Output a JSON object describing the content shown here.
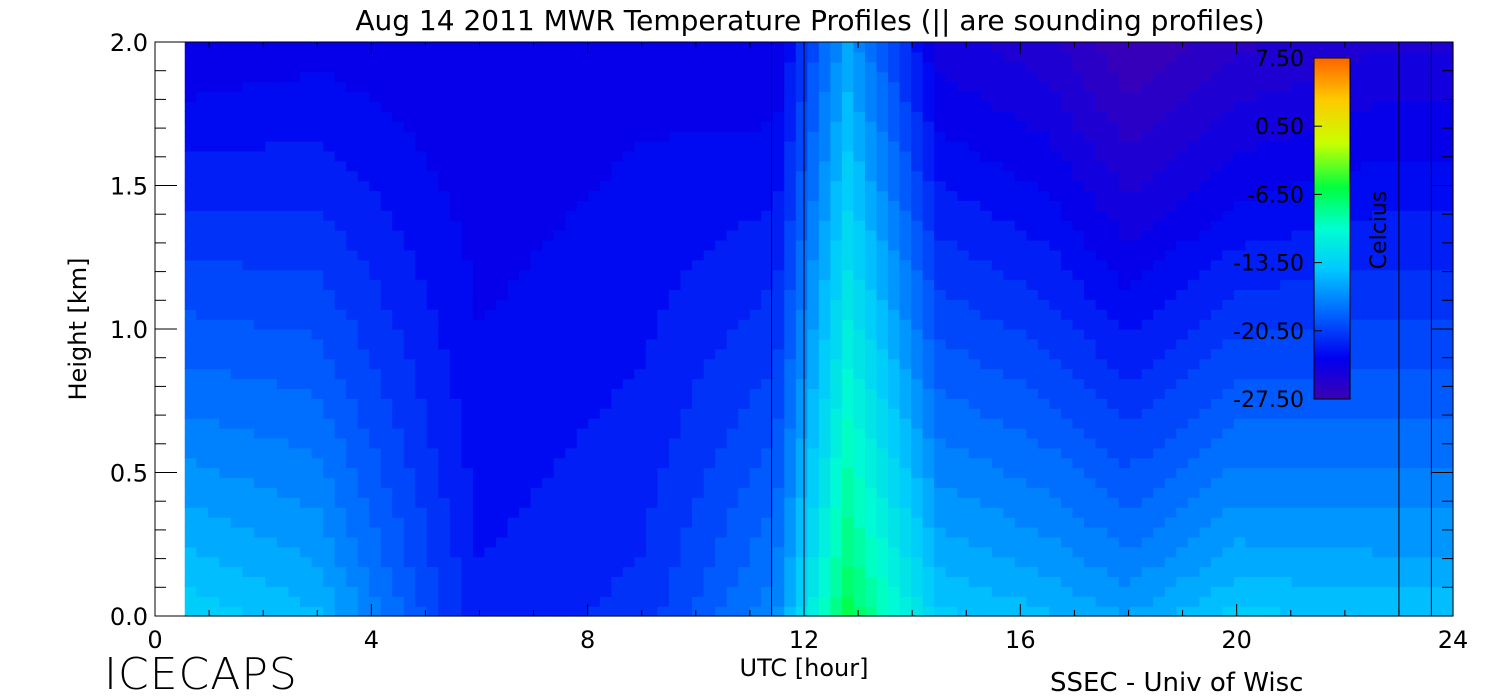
{
  "chart_data": {
    "type": "heatmap",
    "title": "Aug 14 2011 MWR Temperature Profiles (|| are sounding profiles)",
    "xlabel": "UTC [hour]",
    "ylabel": "Height [km]",
    "xlim": [
      0,
      24
    ],
    "ylim": [
      0,
      2
    ],
    "x_ticks": [
      0,
      4,
      8,
      12,
      16,
      20,
      24
    ],
    "y_ticks": [
      "0.0",
      "0.5",
      "1.0",
      "1.5",
      "2.0"
    ],
    "colorbar": {
      "label": "Celcius",
      "range": [
        -27.5,
        7.5
      ],
      "ticks": [
        "7.50",
        "0.50",
        "-6.50",
        "-13.50",
        "-20.50",
        "-27.50"
      ]
    },
    "sounding_times_utc": [
      11.4,
      12.0,
      23.0,
      23.6
    ],
    "data_start_utc": 0.55,
    "profile_samples": {
      "utc_hours": [
        0.5,
        3.0,
        6.0,
        9.0,
        11.5,
        12.8,
        14.5,
        16.5,
        18.0,
        20.0,
        22.5
      ],
      "surface_temp_c": [
        -13.5,
        -15.0,
        -22.0,
        -21.0,
        -17.0,
        -6.0,
        -14.0,
        -15.0,
        -16.0,
        -14.0,
        -14.5
      ],
      "temp_at_2km_c": [
        -24.0,
        -23.5,
        -24.0,
        -23.5,
        -24.0,
        -16.0,
        -24.5,
        -25.5,
        -27.5,
        -26.0,
        -25.0
      ]
    }
  },
  "brand": {
    "left": "ICECAPS",
    "right": "SSEC - Univ of Wisc"
  },
  "colors": {
    "colormap": [
      "#3c00b4",
      "#0000f0",
      "#0064ff",
      "#00c8ff",
      "#00ffd0",
      "#00ff40",
      "#c8ff00",
      "#ffc800",
      "#ff6400"
    ]
  }
}
